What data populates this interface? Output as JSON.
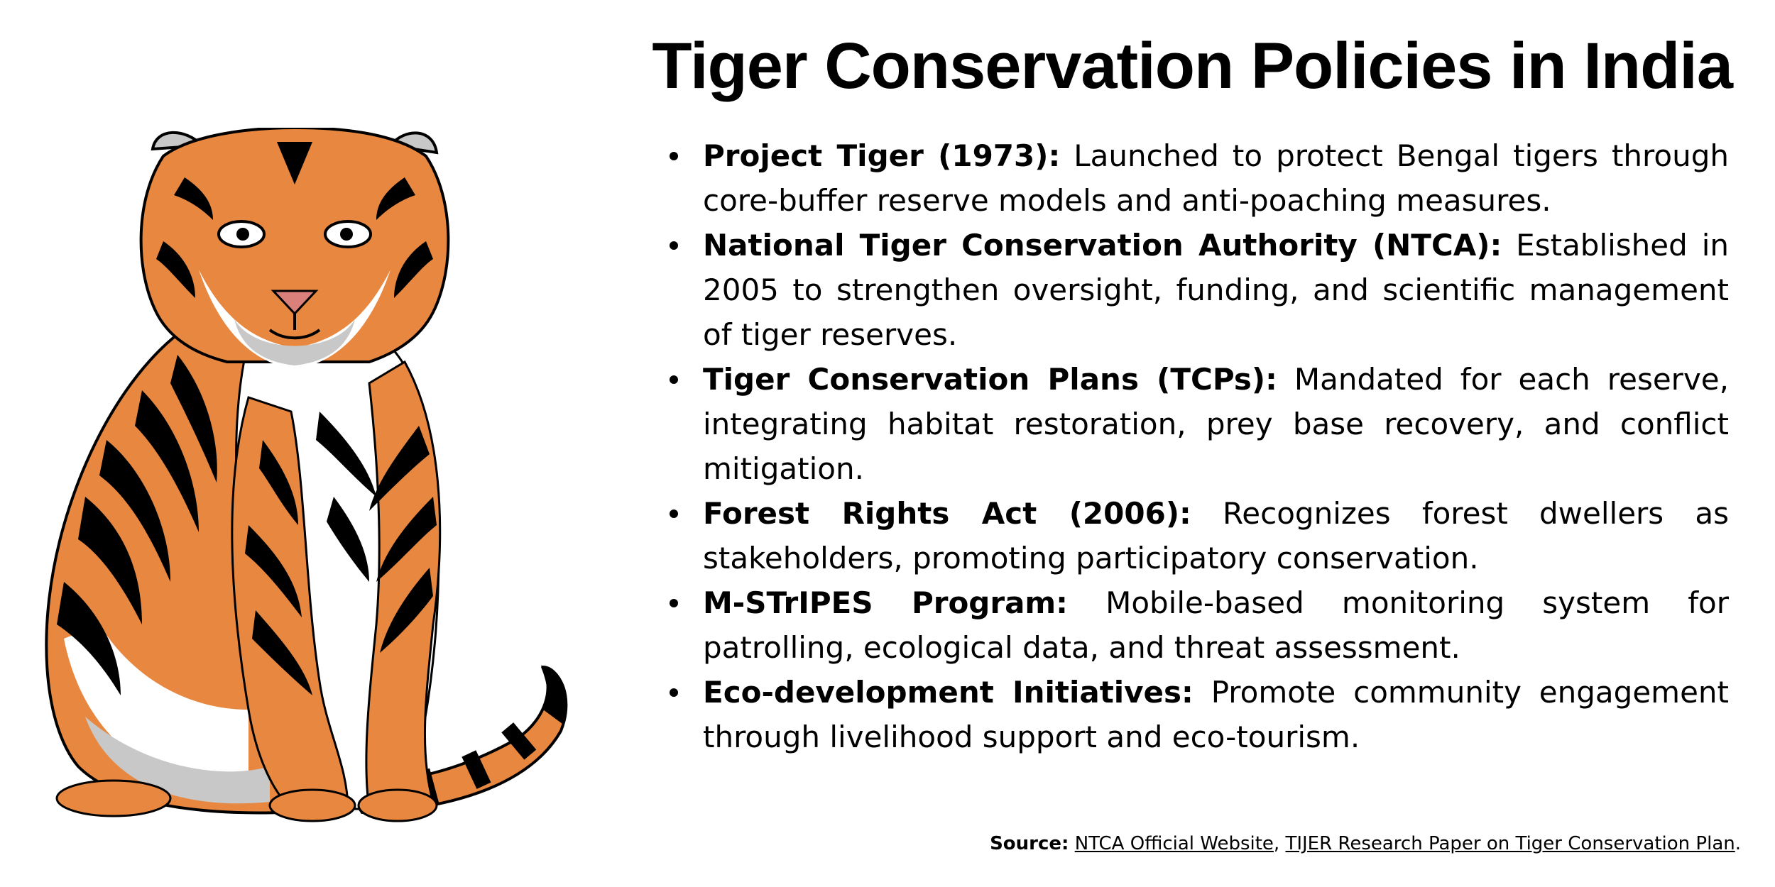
{
  "title": "Tiger Conservation Policies in India",
  "illustration": {
    "subject": "tiger-illustration",
    "colors": {
      "orange": "#E8873F",
      "stripes": "#000000",
      "white": "#FFFFFF",
      "shadow": "#C8C8C8",
      "nose": "#D9807A"
    }
  },
  "policies": [
    {
      "name": "Project Tiger (1973):",
      "text": " Launched to protect Bengal tigers through core-buffer reserve models and anti-poaching measures."
    },
    {
      "name": "National Tiger Conservation Authority (NTCA):",
      "text": " Established in 2005 to strengthen oversight, funding, and scientific management of tiger reserves."
    },
    {
      "name": "Tiger Conservation Plans (TCPs):",
      "text": " Mandated for each reserve, integrating habitat restoration, prey base recovery, and conflict mitigation."
    },
    {
      "name": "Forest Rights Act (2006):",
      "text": " Recognizes forest dwellers as stakeholders, promoting participatory conservation."
    },
    {
      "name": "M-STrIPES Program:",
      "text": " Mobile-based monitoring system for patrolling, ecological data, and threat assessment."
    },
    {
      "name": "Eco-development Initiatives:",
      "text": " Promote community engagement through livelihood support and eco-tourism."
    }
  ],
  "source": {
    "label": "Source:",
    "links": [
      "NTCA Official Website",
      "TIJER Research Paper on Tiger Conservation Plan"
    ],
    "separator": ", ",
    "end": "."
  }
}
